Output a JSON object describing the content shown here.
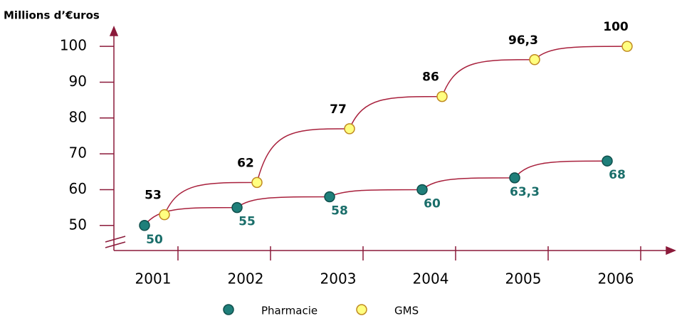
{
  "chart_data": {
    "type": "line",
    "ylabel": "Millions d’€uros",
    "categories": [
      "2001",
      "2002",
      "2003",
      "2004",
      "2005",
      "2006"
    ],
    "series": [
      {
        "name": "Pharmacie",
        "color": "#1f7f7a",
        "values": [
          50,
          55,
          58,
          60,
          63.3,
          68
        ],
        "value_labels": [
          "50",
          "55",
          "58",
          "60",
          "63,3",
          "68"
        ]
      },
      {
        "name": "GMS",
        "color": "#ffff80",
        "values": [
          53,
          62,
          77,
          86,
          96.3,
          100
        ],
        "value_labels": [
          "53",
          "62",
          "77",
          "86",
          "96,3",
          "100"
        ]
      }
    ],
    "line_color": "#a8203c",
    "ylim": [
      43,
      105
    ],
    "yticks": [
      50,
      60,
      70,
      80,
      90,
      100
    ],
    "legend": "bottom"
  }
}
